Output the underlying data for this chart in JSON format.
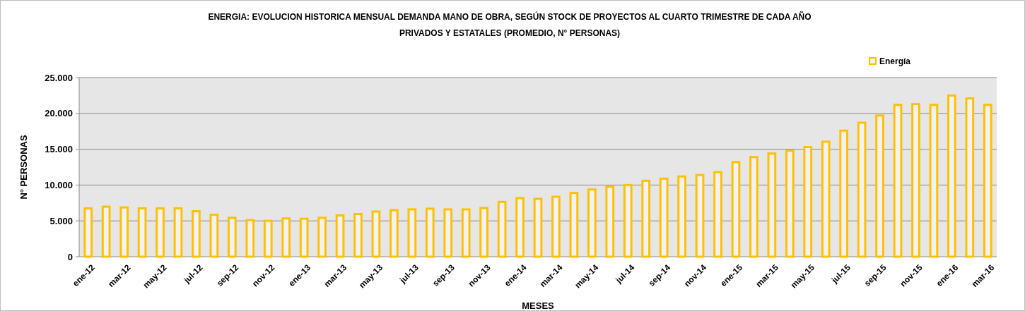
{
  "chart_data": {
    "type": "bar",
    "title": "ENERGIA: EVOLUCION HISTORICA MENSUAL DEMANDA MANO DE OBRA, SEGÚN STOCK DE PROYECTOS AL CUARTO TRIMESTRE DE CADA AÑO",
    "subtitle": "PRIVADOS Y ESTATALES (PROMEDIO, N° PERSONAS)",
    "xlabel": "MESES",
    "ylabel": "N° PERSONAS",
    "categories": [
      "ene-12",
      null,
      "mar-12",
      null,
      "may-12",
      null,
      "jul-12",
      null,
      "sep-12",
      null,
      "nov-12",
      null,
      "ene-13",
      null,
      "mar-13",
      null,
      "may-13",
      null,
      "jul-13",
      null,
      "sep-13",
      null,
      "nov-13",
      null,
      "ene-14",
      null,
      "mar-14",
      null,
      "may-14",
      null,
      "jul-14",
      null,
      "sep-14",
      null,
      "nov-14",
      null,
      "ene-15",
      null,
      "mar-15",
      null,
      "may-15",
      null,
      "jul-15",
      null,
      "sep-15",
      null,
      "nov-15",
      null,
      "ene-16",
      null,
      "mar-16"
    ],
    "series": [
      {
        "name": "Energía",
        "color": "#ffc000",
        "values": [
          6750,
          6980,
          6880,
          6750,
          6750,
          6750,
          6350,
          5860,
          5430,
          5100,
          5000,
          5340,
          5300,
          5430,
          5760,
          5960,
          6300,
          6500,
          6600,
          6700,
          6600,
          6600,
          6800,
          7650,
          8170,
          8070,
          8370,
          8900,
          9380,
          9770,
          10000,
          10600,
          10900,
          11200,
          11400,
          11800,
          13200,
          13900,
          14400,
          14800,
          15300,
          16050,
          17600,
          18700,
          19700,
          21200,
          21300,
          21200,
          22500,
          22100,
          21200
        ]
      }
    ],
    "ylim": [
      0,
      25000
    ],
    "yticks": [
      {
        "value": 0,
        "label": "0"
      },
      {
        "value": 5000,
        "label": "5.000"
      },
      {
        "value": 10000,
        "label": "10.000"
      },
      {
        "value": 15000,
        "label": "15.000"
      },
      {
        "value": 20000,
        "label": "20.000"
      },
      {
        "value": 25000,
        "label": "25.000"
      }
    ],
    "grid": "y",
    "legend": "top right"
  }
}
